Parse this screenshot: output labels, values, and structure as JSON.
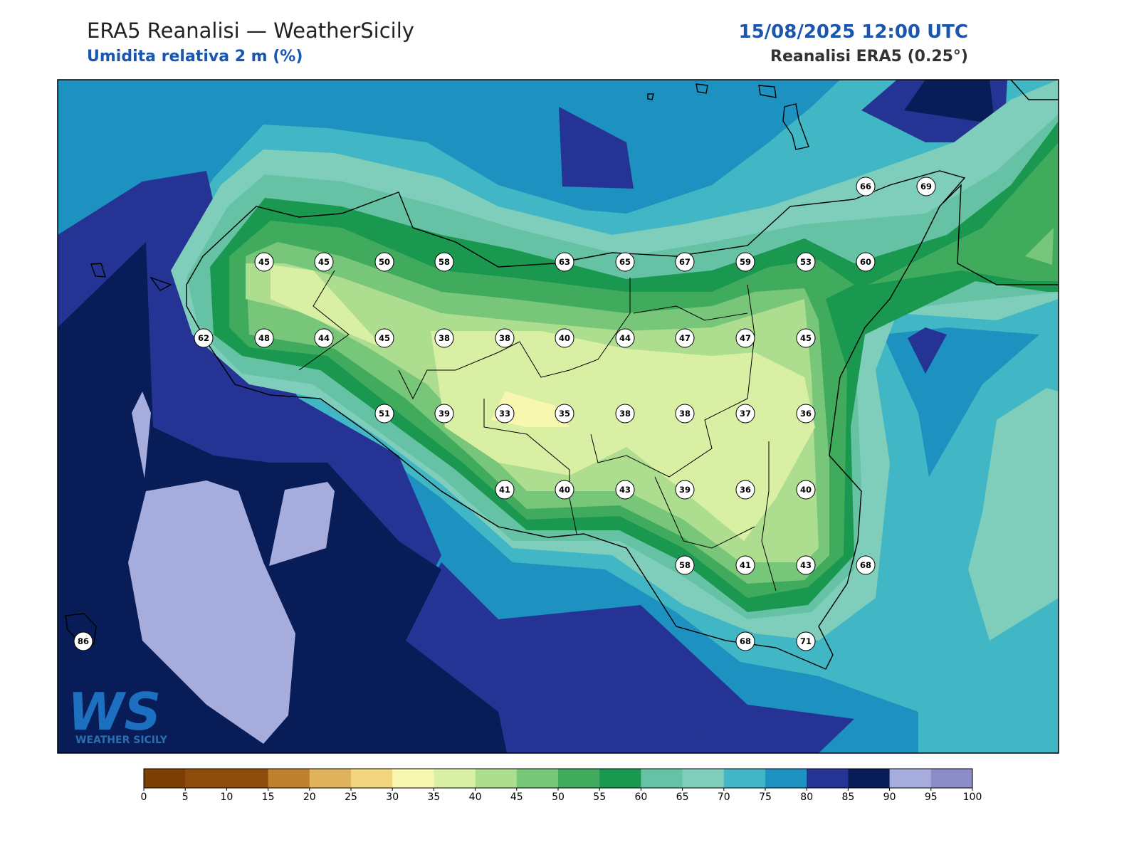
{
  "header": {
    "title": "ERA5 Reanalisi — WeatherSicily",
    "subtitle": "Umidita relativa 2 m (%)",
    "datetime": "15/08/2025 12:00 UTC",
    "source": "Reanalisi ERA5 (0.25°)"
  },
  "stations": [
    66,
    69,
    45,
    45,
    50,
    58,
    63,
    65,
    67,
    59,
    53,
    60,
    62,
    48,
    44,
    45,
    38,
    38,
    40,
    44,
    47,
    47,
    45,
    51,
    39,
    33,
    35,
    38,
    38,
    37,
    36,
    41,
    40,
    43,
    39,
    36,
    40,
    58,
    41,
    43,
    68,
    86,
    68,
    71
  ],
  "colorbar": {
    "ticks": [
      0,
      5,
      10,
      15,
      20,
      25,
      30,
      35,
      40,
      45,
      50,
      55,
      60,
      65,
      70,
      75,
      80,
      85,
      90,
      95,
      100
    ],
    "colors": [
      "#7b3f06",
      "#8f4d0b",
      "#8f4d0b",
      "#bf812d",
      "#dfb25c",
      "#f2d67f",
      "#f7f7b0",
      "#d9efa3",
      "#addd8e",
      "#78c679",
      "#41ab5d",
      "#1a9850",
      "#66c2a4",
      "#7fcdbb",
      "#41b6c4",
      "#1d91c0",
      "#253494",
      "#081d58",
      "#a6acdc",
      "#8c8cc8"
    ]
  },
  "logo": {
    "initials": "WS",
    "text": "WEATHER SICILY"
  }
}
